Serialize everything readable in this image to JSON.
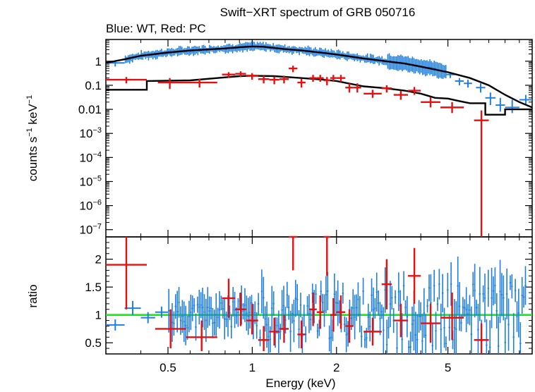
{
  "title": "Swift−XRT spectrum of GRB 050716",
  "subtitle": "Blue: WT, Red: PC",
  "chart_data": [
    {
      "type": "scatter",
      "panel": "spectrum",
      "xlabel": "Energy (keV)",
      "ylabel_parts": {
        "main": "counts s",
        "exp1": "−1",
        "mid": " keV",
        "exp2": "−1"
      },
      "xlim": [
        0.3,
        10
      ],
      "ylim": [
        5e-08,
        8
      ],
      "xscale": "log",
      "yscale": "log",
      "y_tick_labels": [
        {
          "value": 1,
          "base": "1",
          "exp": ""
        },
        {
          "value": 0.1,
          "base": "0.1",
          "exp": ""
        },
        {
          "value": 0.01,
          "base": "0.01",
          "exp": ""
        },
        {
          "value": 0.001,
          "base": "10",
          "exp": "−3"
        },
        {
          "value": 0.0001,
          "base": "10",
          "exp": "−4"
        },
        {
          "value": 1e-05,
          "base": "10",
          "exp": "−5"
        },
        {
          "value": 1e-06,
          "base": "10",
          "exp": "−6"
        },
        {
          "value": 1e-07,
          "base": "10",
          "exp": "−7"
        }
      ],
      "wt_model": [
        [
          0.3,
          0.85
        ],
        [
          0.35,
          1.2
        ],
        [
          0.4,
          1.7
        ],
        [
          0.5,
          2.3
        ],
        [
          0.6,
          2.8
        ],
        [
          0.7,
          3.1
        ],
        [
          0.8,
          3.4
        ],
        [
          0.9,
          3.8
        ],
        [
          1.0,
          4.1
        ],
        [
          1.1,
          4.0
        ],
        [
          1.3,
          3.2
        ],
        [
          1.5,
          2.8
        ],
        [
          1.8,
          2.2
        ],
        [
          2.0,
          1.9
        ],
        [
          2.5,
          1.3
        ],
        [
          3.0,
          1.0
        ],
        [
          3.5,
          0.8
        ],
        [
          4.0,
          0.6
        ],
        [
          5.0,
          0.35
        ],
        [
          6.0,
          0.2
        ],
        [
          7.0,
          0.1
        ],
        [
          8.0,
          0.04
        ],
        [
          9.0,
          0.02
        ],
        [
          10.0,
          0.012
        ]
      ],
      "pc_model": [
        [
          0.3,
          0.065
        ],
        [
          0.42,
          0.065
        ],
        [
          0.42,
          0.15
        ],
        [
          0.6,
          0.16
        ],
        [
          0.75,
          0.2
        ],
        [
          0.9,
          0.24
        ],
        [
          1.0,
          0.25
        ],
        [
          1.2,
          0.24
        ],
        [
          1.5,
          0.2
        ],
        [
          1.8,
          0.17
        ],
        [
          2.0,
          0.15
        ],
        [
          2.2,
          0.12
        ],
        [
          2.5,
          0.09
        ],
        [
          3.0,
          0.075
        ],
        [
          3.5,
          0.06
        ],
        [
          4.0,
          0.045
        ],
        [
          4.5,
          0.03
        ],
        [
          5.0,
          0.028
        ],
        [
          5.5,
          0.022
        ],
        [
          6.0,
          0.018
        ],
        [
          6.8,
          0.018
        ],
        [
          6.8,
          0.006
        ],
        [
          8.0,
          0.006
        ],
        [
          8.0,
          0.01
        ],
        [
          10.0,
          0.01
        ]
      ],
      "pc_points": [
        {
          "x": [
            0.3,
            0.42
          ],
          "y": 0.17,
          "yerr": [
            0.12,
            0.22
          ]
        },
        {
          "x": [
            0.46,
            0.56
          ],
          "y": 0.13,
          "yerr": [
            0.07,
            0.2
          ]
        },
        {
          "x": [
            0.56,
            0.75
          ],
          "y": 0.13,
          "yerr": [
            0.08,
            0.19
          ]
        },
        {
          "x": [
            0.78,
            0.87
          ],
          "y": 0.28,
          "yerr": [
            0.2,
            0.35
          ]
        },
        {
          "x": [
            0.87,
            0.95
          ],
          "y": 0.3,
          "yerr": [
            0.22,
            0.38
          ]
        },
        {
          "x": [
            0.95,
            1.05
          ],
          "y": 0.25,
          "yerr": [
            0.17,
            0.32
          ]
        },
        {
          "x": [
            1.05,
            1.15
          ],
          "y": 0.18,
          "yerr": [
            0.12,
            0.25
          ]
        },
        {
          "x": [
            1.15,
            1.25
          ],
          "y": 0.17,
          "yerr": [
            0.11,
            0.23
          ]
        },
        {
          "x": [
            1.25,
            1.35
          ],
          "y": 0.18,
          "yerr": [
            0.12,
            0.25
          ]
        },
        {
          "x": [
            1.35,
            1.45
          ],
          "y": 0.5,
          "yerr": [
            0.35,
            0.65
          ]
        },
        {
          "x": [
            1.45,
            1.55
          ],
          "y": 0.13,
          "yerr": [
            0.08,
            0.19
          ]
        },
        {
          "x": [
            1.6,
            1.7
          ],
          "y": 0.2,
          "yerr": [
            0.14,
            0.27
          ]
        },
        {
          "x": [
            1.7,
            1.8
          ],
          "y": 0.2,
          "yerr": [
            0.14,
            0.27
          ]
        },
        {
          "x": [
            1.8,
            1.9
          ],
          "y": 0.16,
          "yerr": [
            0.1,
            0.22
          ]
        },
        {
          "x": [
            1.9,
            2.0
          ],
          "y": 0.2,
          "yerr": [
            0.14,
            0.27
          ]
        },
        {
          "x": [
            2.0,
            2.15
          ],
          "y": 0.2,
          "yerr": [
            0.14,
            0.27
          ]
        },
        {
          "x": [
            2.15,
            2.3
          ],
          "y": 0.08,
          "yerr": [
            0.05,
            0.12
          ]
        },
        {
          "x": [
            2.3,
            2.45
          ],
          "y": 0.08,
          "yerr": [
            0.05,
            0.12
          ]
        },
        {
          "x": [
            2.5,
            2.9
          ],
          "y": 0.045,
          "yerr": [
            0.03,
            0.065
          ]
        },
        {
          "x": [
            2.9,
            3.15
          ],
          "y": 0.075,
          "yerr": [
            0.05,
            0.1
          ]
        },
        {
          "x": [
            3.2,
            3.6
          ],
          "y": 0.04,
          "yerr": [
            0.025,
            0.06
          ]
        },
        {
          "x": [
            3.6,
            4.0
          ],
          "y": 0.06,
          "yerr": [
            0.04,
            0.085
          ]
        },
        {
          "x": [
            4.0,
            4.7
          ],
          "y": 0.02,
          "yerr": [
            0.012,
            0.032
          ]
        },
        {
          "x": [
            4.7,
            5.7
          ],
          "y": 0.012,
          "yerr": [
            0.007,
            0.02
          ]
        },
        {
          "x": [
            6.2,
            7.0
          ],
          "y": 0.0035,
          "yerr": [
            1e-08,
            0.009
          ]
        }
      ],
      "wt_extra_points": [
        {
          "x": [
            0.3,
            0.35
          ],
          "y": 0.85,
          "yerr": [
            0.6,
            1.05
          ]
        },
        {
          "x": [
            4.9,
            5.3
          ],
          "y": 0.28,
          "yerr": [
            0.2,
            0.35
          ]
        },
        {
          "x": [
            5.3,
            5.7
          ],
          "y": 0.15,
          "yerr": [
            0.1,
            0.2
          ]
        },
        {
          "x": [
            5.7,
            6.1
          ],
          "y": 0.12,
          "yerr": [
            0.08,
            0.17
          ]
        },
        {
          "x": [
            6.3,
            6.8
          ],
          "y": 0.08,
          "yerr": [
            0.05,
            0.12
          ]
        },
        {
          "x": [
            6.8,
            7.4
          ],
          "y": 0.03,
          "yerr": [
            0.015,
            0.05
          ]
        },
        {
          "x": [
            7.4,
            8.0
          ],
          "y": 0.015,
          "yerr": [
            0.008,
            0.03
          ]
        },
        {
          "x": [
            8.0,
            9.0
          ],
          "y": 0.012,
          "yerr": [
            0.007,
            0.025
          ]
        },
        {
          "x": [
            9.0,
            10.0
          ],
          "y": 0.025,
          "yerr": [
            0.015,
            0.04
          ]
        }
      ],
      "series_colors": {
        "wt": "#1f7fe0",
        "pc": "#e61010",
        "model": "#000000"
      }
    },
    {
      "type": "scatter",
      "panel": "ratio",
      "ylabel": "ratio",
      "xlim": [
        0.3,
        10
      ],
      "ylim": [
        0.3,
        2.4
      ],
      "xscale": "log",
      "x_tick_labels": [
        {
          "value": 0.5,
          "label": "0.5"
        },
        {
          "value": 1,
          "label": "1"
        },
        {
          "value": 2,
          "label": "2"
        },
        {
          "value": 5,
          "label": "5"
        }
      ],
      "y_tick_labels": [
        {
          "value": 0.5,
          "label": "0.5"
        },
        {
          "value": 1,
          "label": "1"
        },
        {
          "value": 1.5,
          "label": "1.5"
        },
        {
          "value": 2,
          "label": "2"
        }
      ],
      "reference_line": 1,
      "reference_color": "#22e022",
      "pc_ratio_points": [
        {
          "x": [
            0.3,
            0.42
          ],
          "y": 1.9,
          "yerr": [
            1.1,
            2.4
          ]
        },
        {
          "x": [
            0.45,
            0.58
          ],
          "y": 0.75,
          "yerr": [
            0.4,
            1.1
          ]
        },
        {
          "x": [
            0.58,
            0.75
          ],
          "y": 0.6,
          "yerr": [
            0.35,
            0.9
          ]
        },
        {
          "x": [
            0.78,
            0.87
          ],
          "y": 1.3,
          "yerr": [
            0.95,
            1.65
          ]
        },
        {
          "x": [
            0.87,
            0.95
          ],
          "y": 1.1,
          "yerr": [
            0.8,
            1.4
          ]
        },
        {
          "x": [
            0.95,
            1.05
          ],
          "y": 0.9,
          "yerr": [
            0.65,
            1.2
          ]
        },
        {
          "x": [
            1.05,
            1.15
          ],
          "y": 0.55,
          "yerr": [
            0.35,
            0.8
          ]
        },
        {
          "x": [
            1.15,
            1.25
          ],
          "y": 0.7,
          "yerr": [
            0.45,
            0.95
          ]
        },
        {
          "x": [
            1.25,
            1.35
          ],
          "y": 0.75,
          "yerr": [
            0.5,
            1.0
          ]
        },
        {
          "x": [
            1.35,
            1.45
          ],
          "y": 2.4,
          "yerr": [
            1.8,
            2.4
          ]
        },
        {
          "x": [
            1.45,
            1.55
          ],
          "y": 0.65,
          "yerr": [
            0.4,
            0.9
          ]
        },
        {
          "x": [
            1.6,
            1.7
          ],
          "y": 1.1,
          "yerr": [
            0.8,
            1.4
          ]
        },
        {
          "x": [
            1.7,
            1.8
          ],
          "y": 1.05,
          "yerr": [
            0.75,
            1.35
          ]
        },
        {
          "x": [
            1.8,
            1.9
          ],
          "y": 2.4,
          "yerr": [
            1.7,
            2.4
          ]
        },
        {
          "x": [
            1.9,
            2.0
          ],
          "y": 1.0,
          "yerr": [
            0.7,
            1.3
          ]
        },
        {
          "x": [
            2.0,
            2.15
          ],
          "y": 1.05,
          "yerr": [
            0.75,
            1.35
          ]
        },
        {
          "x": [
            2.15,
            2.3
          ],
          "y": 0.8,
          "yerr": [
            0.5,
            1.1
          ]
        },
        {
          "x": [
            2.5,
            2.9
          ],
          "y": 0.7,
          "yerr": [
            0.45,
            0.95
          ]
        },
        {
          "x": [
            2.9,
            3.15
          ],
          "y": 1.55,
          "yerr": [
            1.1,
            2.0
          ]
        },
        {
          "x": [
            3.2,
            3.6
          ],
          "y": 0.9,
          "yerr": [
            0.6,
            1.2
          ]
        },
        {
          "x": [
            3.6,
            4.0
          ],
          "y": 1.7,
          "yerr": [
            1.2,
            2.2
          ]
        },
        {
          "x": [
            4.0,
            4.7
          ],
          "y": 0.85,
          "yerr": [
            0.5,
            1.2
          ]
        },
        {
          "x": [
            4.7,
            5.7
          ],
          "y": 0.95,
          "yerr": [
            0.55,
            1.4
          ]
        },
        {
          "x": [
            6.2,
            7.0
          ],
          "y": 0.55,
          "yerr": [
            0.3,
            0.85
          ]
        }
      ],
      "wt_ratio_points": [
        {
          "x": [
            0.3,
            0.35
          ],
          "y": 0.82,
          "yerr": [
            0.72,
            0.92
          ]
        },
        {
          "x": [
            0.35,
            0.4
          ],
          "y": 1.12,
          "yerr": [
            1.0,
            1.25
          ]
        },
        {
          "x": [
            0.4,
            0.45
          ],
          "y": 0.95,
          "yerr": [
            0.85,
            1.05
          ]
        },
        {
          "x": [
            0.45,
            0.5
          ],
          "y": 1.05,
          "yerr": [
            0.95,
            1.15
          ]
        }
      ]
    }
  ]
}
